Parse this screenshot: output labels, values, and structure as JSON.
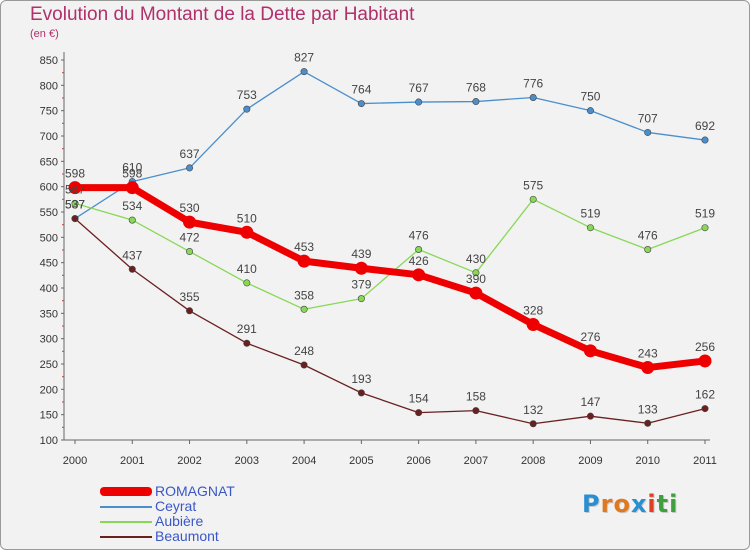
{
  "title": "Evolution du Montant de la Dette par Habitant",
  "subtitle": "(en €)",
  "logo": {
    "letters": [
      "P",
      "r",
      "o",
      "x",
      "i",
      "t",
      "i"
    ],
    "colors": [
      "#2a8fd0",
      "#e07820",
      "#e07820",
      "#2a8fd0",
      "#e04020",
      "#40a040",
      "#40a040"
    ]
  },
  "chart_data": {
    "type": "line",
    "title": "Evolution du Montant de la Dette par Habitant",
    "subtitle": "(en €)",
    "x": [
      "2000",
      "2001",
      "2002",
      "2003",
      "2004",
      "2005",
      "2006",
      "2007",
      "2008",
      "2009",
      "2010",
      "2011"
    ],
    "ylim": [
      100,
      850
    ],
    "yticks": [
      "100",
      "150",
      "200",
      "250",
      "300",
      "350",
      "400",
      "450",
      "500",
      "550",
      "600",
      "650",
      "700",
      "750",
      "800",
      "850"
    ],
    "grid": false,
    "legend_position": "bottom-left",
    "series": [
      {
        "name": "ROMAGNAT",
        "color": "#ee0000",
        "values": [
          598,
          598,
          530,
          510,
          453,
          439,
          426,
          390,
          328,
          276,
          243,
          256
        ],
        "labels": [
          "598",
          "598",
          "530",
          "510",
          "453",
          "439",
          "426",
          "390",
          "328",
          "276",
          "243",
          "256"
        ]
      },
      {
        "name": "Ceyrat",
        "color": "#4a8fcc",
        "values": [
          537,
          610,
          637,
          753,
          827,
          764,
          767,
          768,
          776,
          750,
          707,
          692
        ],
        "labels": [
          "537",
          "610",
          "637",
          "753",
          "827",
          "764",
          "767",
          "768",
          "776",
          "750",
          "707",
          "692"
        ]
      },
      {
        "name": "Aubière",
        "color": "#88d856",
        "values": [
          567,
          534,
          472,
          410,
          358,
          379,
          476,
          430,
          575,
          519,
          476,
          519
        ],
        "labels": [
          "567",
          "534",
          "472",
          "410",
          "358",
          "379",
          "476",
          "430",
          "575",
          "519",
          "476",
          "519"
        ]
      },
      {
        "name": "Beaumont",
        "color": "#6b2020",
        "values": [
          537,
          437,
          355,
          291,
          248,
          193,
          154,
          158,
          132,
          147,
          133,
          162
        ],
        "labels": [
          "537",
          "437",
          "355",
          "291",
          "248",
          "193",
          "154",
          "158",
          "132",
          "147",
          "133",
          "162"
        ]
      }
    ]
  }
}
